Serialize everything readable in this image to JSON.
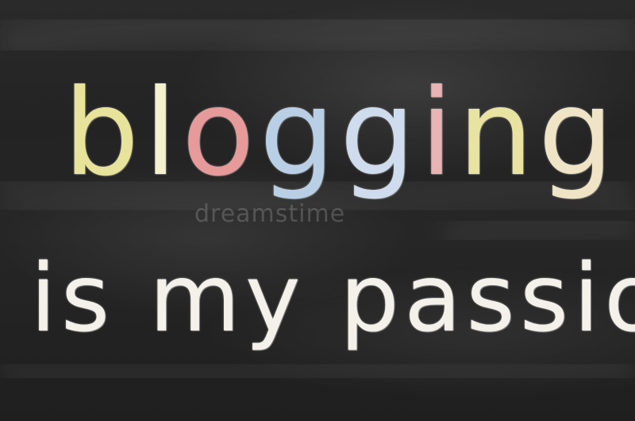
{
  "line_1": {
    "text": "blogging",
    "letters": [
      "b",
      "l",
      "o",
      "g",
      "g",
      "i",
      "n",
      "g"
    ],
    "colors": [
      "#e8e39a",
      "#f4f1cf",
      "#e79a9a",
      "#b9cfe6",
      "#cfdcee",
      "#e7b3b3",
      "#e9e3a2",
      "#f0e4c6"
    ]
  },
  "line_2": {
    "text": "is my passion",
    "color": "#f3f1ea"
  },
  "watermark": "dreamstime",
  "background_color": "#262626"
}
